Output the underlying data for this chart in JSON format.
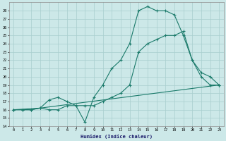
{
  "title": "",
  "xlabel": "Humidex (Indice chaleur)",
  "xlim": [
    -0.5,
    23.5
  ],
  "ylim": [
    14,
    29
  ],
  "yticks": [
    14,
    15,
    16,
    17,
    18,
    19,
    20,
    21,
    22,
    23,
    24,
    25,
    26,
    27,
    28
  ],
  "xticks": [
    0,
    1,
    2,
    3,
    4,
    5,
    6,
    7,
    8,
    9,
    10,
    11,
    12,
    13,
    14,
    15,
    16,
    17,
    18,
    19,
    20,
    21,
    22,
    23
  ],
  "bg_color": "#cce8e8",
  "line_color": "#1a7a6a",
  "grid_color": "#a8cece",
  "line1_x": [
    0,
    1,
    2,
    3,
    4,
    5,
    6,
    7,
    8,
    9,
    10,
    11,
    12,
    13,
    14,
    15,
    16,
    17,
    18,
    19,
    20,
    21,
    22,
    23
  ],
  "line1_y": [
    16,
    16,
    16,
    16.2,
    16,
    16,
    16.5,
    16.5,
    14.5,
    17.5,
    19,
    21,
    22,
    24,
    28,
    28.5,
    28,
    28,
    27.5,
    25,
    22,
    20,
    19,
    19
  ],
  "line2_x": [
    0,
    1,
    2,
    3,
    4,
    5,
    6,
    7,
    8,
    9,
    10,
    11,
    12,
    13,
    14,
    15,
    16,
    17,
    18,
    19,
    20,
    21,
    22,
    23
  ],
  "line2_y": [
    16,
    16,
    16,
    16.2,
    17.2,
    17.5,
    17,
    16.5,
    16.5,
    16.5,
    17,
    17.5,
    18,
    19,
    23,
    24,
    24.5,
    25,
    25,
    25.5,
    22,
    20.5,
    20,
    19
  ],
  "line3_x": [
    0,
    3,
    23
  ],
  "line3_y": [
    16,
    16.2,
    19
  ]
}
